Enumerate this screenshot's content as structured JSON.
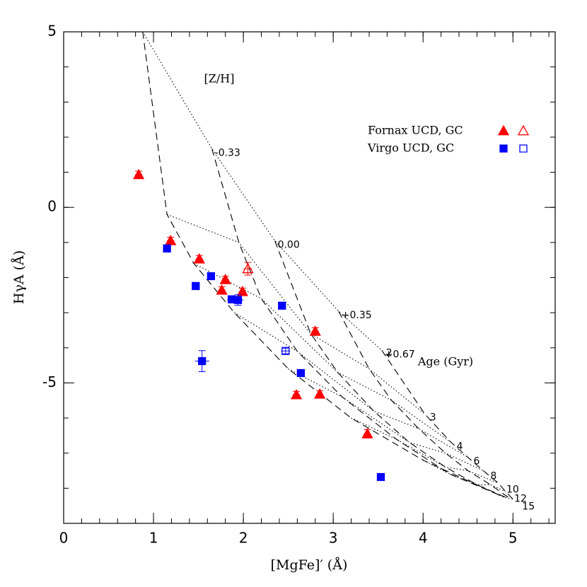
{
  "chart_data": {
    "type": "scatter",
    "xlabel": "[MgFe]′ (Å)",
    "ylabel": "HγA (Å)",
    "xlim": [
      0,
      5.47
    ],
    "ylim": [
      -9,
      5
    ],
    "xticks": [
      0,
      1,
      2,
      3,
      4,
      5
    ],
    "yticks": [
      -5,
      0,
      5
    ],
    "x_minor_step": 0.2,
    "y_minor_step": 1,
    "groups": [
      {
        "name": "Fornax UCD, GC",
        "color": "#ff0000",
        "marker": "triangle",
        "ucd": {
          "x": [
            0.835,
            1.19,
            1.51,
            1.8,
            1.76,
            1.99,
            2.8,
            2.59,
            2.85,
            3.38
          ],
          "y": [
            0.93,
            -0.95,
            -1.47,
            -2.06,
            -2.36,
            -2.4,
            -3.53,
            -5.34,
            -5.32,
            -6.45
          ],
          "xerr": [
            0.04,
            0.04,
            0.04,
            0.04,
            0.04,
            0.04,
            0.04,
            0.04,
            0.04,
            0.04
          ],
          "yerr": [
            0.1,
            0.1,
            0.1,
            0.1,
            0.1,
            0.1,
            0.1,
            0.1,
            0.1,
            0.12
          ]
        },
        "gc": {
          "x": [
            2.05
          ],
          "y": [
            -1.75
          ],
          "xerr": [
            0.05
          ],
          "yerr": [
            0.18
          ]
        }
      },
      {
        "name": "Virgo UCD, GC",
        "color": "#0000ff",
        "marker": "square",
        "ucd": {
          "x": [
            1.15,
            1.47,
            1.64,
            1.87,
            1.94,
            2.43,
            2.64,
            1.54,
            3.53
          ],
          "y": [
            -1.17,
            -2.24,
            -1.96,
            -2.62,
            -2.64,
            -2.8,
            -4.72,
            -4.38,
            -7.68
          ],
          "xerr": [
            0.03,
            0.03,
            0.03,
            0.05,
            0.06,
            0.03,
            0.03,
            0.08,
            0.03
          ],
          "yerr": [
            0.1,
            0.08,
            0.08,
            0.1,
            0.15,
            0.08,
            0.08,
            0.3,
            0.1
          ]
        },
        "gc": {
          "x": [
            2.47
          ],
          "y": [
            -4.09
          ],
          "xerr": [
            0.05
          ],
          "yerr": [
            0.08
          ]
        }
      }
    ],
    "model_grid": {
      "metallicity_title": "[Z/H]",
      "age_title": "Age (Gyr)",
      "ages": [
        2,
        3,
        4,
        6,
        8,
        10,
        12,
        15
      ],
      "tracks": [
        {
          "x": [
            0.88,
            1.15,
            1.45,
            1.9,
            2.5,
            3.2,
            4.0,
            4.85
          ],
          "y": [
            5.0,
            -0.2,
            -1.6,
            -3.0,
            -4.6,
            -6.0,
            -7.2,
            -8.2
          ]
        },
        {
          "name": "-0.33",
          "x": [
            1.65,
            1.95,
            2.2,
            2.6,
            3.1,
            3.7,
            4.3,
            4.9
          ],
          "y": [
            1.67,
            -1.0,
            -2.6,
            -4.1,
            -5.4,
            -6.6,
            -7.6,
            -8.25
          ]
        },
        {
          "name": "0.00",
          "x": [
            2.35,
            2.75,
            3.05,
            3.45,
            3.85,
            4.25,
            4.6,
            4.94
          ],
          "y": [
            -0.95,
            -3.6,
            -4.7,
            -5.8,
            -6.7,
            -7.4,
            -7.9,
            -8.28
          ]
        },
        {
          "name": "+0.35",
          "x": [
            3.06,
            3.4,
            3.65,
            3.95,
            4.25,
            4.5,
            4.75,
            4.97
          ],
          "y": [
            -2.96,
            -4.6,
            -5.5,
            -6.3,
            -7.0,
            -7.5,
            -7.9,
            -8.3
          ]
        },
        {
          "name": "+0.67",
          "x": [
            3.54,
            4.02,
            4.31,
            4.49,
            4.67,
            4.84,
            4.92,
            5.0
          ],
          "y": [
            -4.07,
            -5.89,
            -6.69,
            -7.1,
            -7.5,
            -7.86,
            -8.1,
            -8.31
          ]
        }
      ]
    }
  }
}
